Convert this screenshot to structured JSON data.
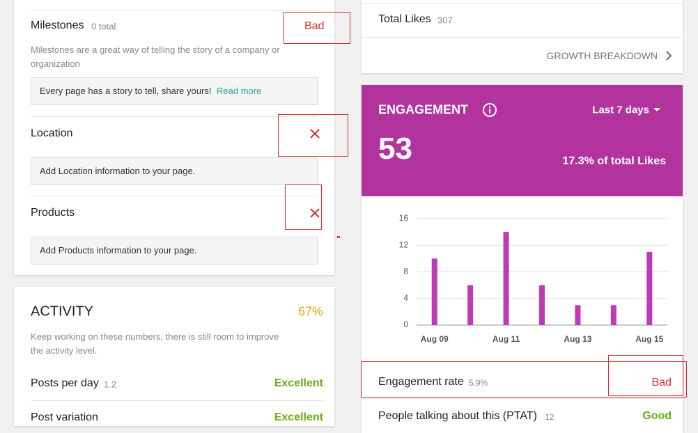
{
  "checklist": {
    "milestones": {
      "label": "Milestones",
      "count": "0 total",
      "status": "Bad",
      "description": "Milestones are a great way of telling the story of a company or organization",
      "tip": "Every page has a story to tell, share yours!",
      "link": "Read more"
    },
    "location": {
      "label": "Location",
      "tip": "Add Location information to your page."
    },
    "products": {
      "label": "Products",
      "tip": "Add Products information to your page."
    }
  },
  "activity": {
    "title": "ACTIVITY",
    "score": "67%",
    "description": "Keep working on these numbers, there is still room to improve the activity level.",
    "rows": [
      {
        "label": "Posts per day",
        "value": "1.2",
        "status": "Excellent"
      },
      {
        "label": "Post variation",
        "status": "Excellent"
      }
    ]
  },
  "likes": {
    "label": "Total Likes",
    "value": "307",
    "link": "GROWTH BREAKDOWN"
  },
  "engagement": {
    "title": "ENGAGEMENT",
    "period": "Last 7 days",
    "value": "53",
    "share": "17.3% of total Likes",
    "rows": [
      {
        "label": "Engagement rate",
        "value": "5.9%",
        "status": "Bad"
      },
      {
        "label": "People talking about this (PTAT)",
        "value": "12",
        "status": "Good"
      }
    ]
  },
  "chart_data": {
    "type": "bar",
    "categories": [
      "Aug 09",
      null,
      "Aug 11",
      null,
      "Aug 13",
      null,
      "Aug 15"
    ],
    "values": [
      10,
      6,
      14,
      6,
      3,
      3,
      11
    ],
    "color": "#c13ab5",
    "ylim": [
      0,
      16
    ],
    "yticks": [
      0,
      4,
      8,
      12,
      16
    ],
    "grid": true
  }
}
